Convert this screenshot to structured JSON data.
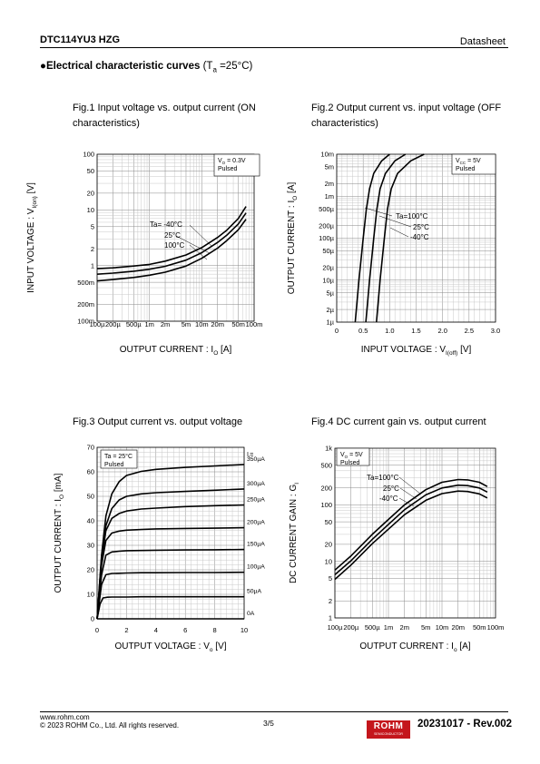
{
  "header": {
    "part_number": "DTC114YU3 HZG",
    "doc_type": "Datasheet"
  },
  "section": {
    "bullet": "●",
    "title": "Electrical characteristic curves",
    "condition": "(T",
    "condition_sub": "a",
    "condition_end": " =25°C)"
  },
  "figures": {
    "fig1": {
      "caption_line1": "Fig.1 Input voltage vs. output current (ON",
      "caption_line2": "characteristics)"
    },
    "fig2": {
      "caption_line1": "Fig.2 Output current vs. input voltage (OFF",
      "caption_line2": "characteristics)"
    },
    "fig3": {
      "caption_line1": "Fig.3 Output current vs. output voltage"
    },
    "fig4": {
      "caption_line1": "Fig.4 DC current gain vs. output current"
    }
  },
  "chart_data": [
    {
      "type": "line",
      "x_scale": "log",
      "y_scale": "log",
      "xlabel": "OUTPUT CURRENT : IO [A]",
      "ylabel": "INPUT VOLTAGE : VI(on) [V]",
      "xlabel_parts": [
        "OUTPUT CURRENT : I",
        "O",
        " [A]"
      ],
      "ylabel_parts": [
        "INPUT VOLTAGE : V",
        "I(on)",
        " [V]"
      ],
      "xlim": [
        0.0001,
        0.1
      ],
      "ylim": [
        0.1,
        100
      ],
      "x_ticks": [
        "100µ",
        "200µ",
        "500µ",
        "1m",
        "2m",
        "5m",
        "10m",
        "20m",
        "50m",
        "100m"
      ],
      "x_tick_values": [
        0.0001,
        0.0002,
        0.0005,
        0.001,
        0.002,
        0.005,
        0.01,
        0.02,
        0.05,
        0.1
      ],
      "y_ticks": [
        "100m",
        "200m",
        "500m",
        "1",
        "2",
        "5",
        "10",
        "20",
        "50",
        "100"
      ],
      "y_tick_values": [
        0.1,
        0.2,
        0.5,
        1,
        2,
        5,
        10,
        20,
        50,
        100
      ],
      "conditions": [
        "VO = 0.3V",
        "Pulsed"
      ],
      "conditions_parts": [
        [
          "V",
          "O",
          " = 0.3V"
        ],
        [
          "Pulsed",
          "",
          ""
        ]
      ],
      "series_labels": [
        "Ta= -40°C",
        "25°C",
        "100°C"
      ],
      "series": [
        {
          "name": "Ta= -40°C",
          "x": [
            0.0001,
            0.0002,
            0.0005,
            0.001,
            0.002,
            0.005,
            0.01,
            0.02,
            0.03,
            0.05,
            0.07
          ],
          "y": [
            0.88,
            0.91,
            0.98,
            1.05,
            1.2,
            1.55,
            2.1,
            3.2,
            4.3,
            7.0,
            11.5
          ]
        },
        {
          "name": "25°C",
          "x": [
            0.0001,
            0.0002,
            0.0005,
            0.001,
            0.002,
            0.005,
            0.01,
            0.02,
            0.03,
            0.05,
            0.07
          ],
          "y": [
            0.7,
            0.73,
            0.79,
            0.86,
            0.97,
            1.25,
            1.7,
            2.6,
            3.5,
            5.6,
            8.8
          ]
        },
        {
          "name": "100°C",
          "x": [
            0.0001,
            0.0002,
            0.0005,
            0.001,
            0.002,
            0.005,
            0.01,
            0.02,
            0.03,
            0.05,
            0.07
          ],
          "y": [
            0.53,
            0.56,
            0.61,
            0.67,
            0.76,
            0.98,
            1.35,
            2.05,
            2.8,
            4.4,
            6.8
          ]
        }
      ]
    },
    {
      "type": "line",
      "x_scale": "linear",
      "y_scale": "log",
      "xlabel": "INPUT VOLTAGE : VI(off) [V]",
      "ylabel": "OUTPUT CURRENT : IO [A]",
      "xlabel_parts": [
        "INPUT VOLTAGE : V",
        "I(off)",
        " [V]"
      ],
      "ylabel_parts": [
        "OUTPUT CURRENT : I",
        "O",
        " [A]"
      ],
      "xlim": [
        0,
        3.0
      ],
      "ylim": [
        1e-06,
        0.01
      ],
      "x_ticks": [
        "0",
        "0.5",
        "1.0",
        "1.5",
        "2.0",
        "2.5",
        "3.0"
      ],
      "x_tick_values": [
        0,
        0.5,
        1.0,
        1.5,
        2.0,
        2.5,
        3.0
      ],
      "y_ticks": [
        "1µ",
        "2µ",
        "5µ",
        "10µ",
        "20µ",
        "50µ",
        "100µ",
        "200µ",
        "500µ",
        "1m",
        "2m",
        "5m",
        "10m"
      ],
      "y_tick_values": [
        1e-06,
        2e-06,
        5e-06,
        1e-05,
        2e-05,
        5e-05,
        0.0001,
        0.0002,
        0.0005,
        0.001,
        0.002,
        0.005,
        0.01
      ],
      "conditions": [
        "VCC = 5V",
        "Pulsed"
      ],
      "conditions_parts": [
        [
          "V",
          "CC",
          " = 5V"
        ],
        [
          "Pulsed",
          "",
          ""
        ]
      ],
      "series_labels": [
        "Ta=100°C",
        "25°C",
        "-40°C"
      ],
      "series": [
        {
          "name": "Ta=100°C",
          "x": [
            0.35,
            0.42,
            0.5,
            0.56,
            0.62,
            0.7,
            0.85,
            1.0
          ],
          "y": [
            1e-06,
            1e-05,
            0.0001,
            0.0005,
            0.0015,
            0.0035,
            0.007,
            0.01
          ]
        },
        {
          "name": "25°C",
          "x": [
            0.55,
            0.62,
            0.7,
            0.76,
            0.82,
            0.92,
            1.1,
            1.3
          ],
          "y": [
            1e-06,
            1e-05,
            0.0001,
            0.0005,
            0.0015,
            0.0035,
            0.007,
            0.01
          ]
        },
        {
          "name": "-40°C",
          "x": [
            0.75,
            0.82,
            0.9,
            0.96,
            1.03,
            1.15,
            1.4,
            1.65
          ],
          "y": [
            1e-06,
            1e-05,
            0.0001,
            0.0005,
            0.0015,
            0.0035,
            0.007,
            0.01
          ]
        }
      ]
    },
    {
      "type": "line",
      "x_scale": "linear",
      "y_scale": "linear",
      "xlabel": "OUTPUT VOLTAGE : Vo [V]",
      "ylabel": "OUTPUT CURRENT : IO [mA]",
      "xlabel_parts": [
        "OUTPUT VOLTAGE : V",
        "o",
        " [V]"
      ],
      "ylabel_parts": [
        "OUTPUT CURRENT : I",
        "O",
        " [mA]"
      ],
      "xlim": [
        0,
        10
      ],
      "ylim": [
        0,
        70
      ],
      "x_ticks": [
        "0",
        "2",
        "4",
        "6",
        "8",
        "10"
      ],
      "x_tick_values": [
        0,
        2,
        4,
        6,
        8,
        10
      ],
      "y_ticks": [
        "0",
        "10",
        "20",
        "30",
        "40",
        "50",
        "60",
        "70"
      ],
      "y_tick_values": [
        0,
        10,
        20,
        30,
        40,
        50,
        60,
        70
      ],
      "conditions": [
        "Ta = 25°C",
        "Pulsed"
      ],
      "conditions_parts": [
        [
          "Ta = 25°C",
          "",
          ""
        ],
        [
          "Pulsed",
          "",
          ""
        ]
      ],
      "legend_title": "II=",
      "legend_title_parts": [
        "I",
        "I",
        "="
      ],
      "series": [
        {
          "name": "350µA",
          "x": [
            0,
            0.3,
            0.6,
            1,
            1.5,
            2,
            3,
            4,
            6,
            8,
            10
          ],
          "y": [
            0,
            26,
            42,
            51,
            56,
            58.5,
            60.2,
            61,
            61.8,
            62.4,
            63
          ]
        },
        {
          "name": "300µA",
          "x": [
            0,
            0.3,
            0.6,
            1,
            1.5,
            2,
            3,
            4,
            6,
            8,
            10
          ],
          "y": [
            0,
            25,
            38,
            45,
            48.5,
            50,
            51,
            51.5,
            52,
            52.5,
            53
          ]
        },
        {
          "name": "250µA",
          "x": [
            0,
            0.3,
            0.6,
            1,
            1.5,
            2,
            3,
            4,
            6,
            8,
            10
          ],
          "y": [
            0,
            24,
            36,
            41,
            43,
            44,
            44.8,
            45.2,
            45.8,
            46.2,
            46.5
          ]
        },
        {
          "name": "200µA",
          "x": [
            0,
            0.3,
            0.6,
            1,
            1.5,
            2,
            3,
            4,
            6,
            8,
            10
          ],
          "y": [
            0,
            22,
            32,
            35,
            35.8,
            36.2,
            36.5,
            36.7,
            36.9,
            37,
            37.2
          ]
        },
        {
          "name": "150µA",
          "x": [
            0,
            0.3,
            0.6,
            1,
            1.5,
            2,
            3,
            4,
            6,
            8,
            10
          ],
          "y": [
            0,
            18,
            26,
            27.3,
            27.6,
            27.8,
            27.9,
            28,
            28.1,
            28.2,
            28.3
          ]
        },
        {
          "name": "100µA",
          "x": [
            0,
            0.3,
            0.6,
            1,
            1.5,
            2,
            3,
            4,
            6,
            8,
            10
          ],
          "y": [
            0,
            14,
            18,
            18.5,
            18.6,
            18.7,
            18.8,
            18.8,
            18.9,
            18.9,
            19
          ]
        },
        {
          "name": "50µA",
          "x": [
            0,
            0.2,
            0.4,
            0.7,
            1,
            2,
            3,
            4,
            6,
            8,
            10
          ],
          "y": [
            0,
            6,
            8.5,
            8.8,
            8.9,
            8.9,
            9,
            9,
            9,
            9,
            9
          ]
        },
        {
          "name": "0A",
          "x": [
            0,
            10
          ],
          "y": [
            0,
            0
          ]
        }
      ]
    },
    {
      "type": "line",
      "x_scale": "log",
      "y_scale": "log",
      "xlabel": "OUTPUT CURRENT : Io [A]",
      "ylabel": "DC CURRENT GAIN : GI",
      "xlabel_parts": [
        "OUTPUT CURRENT : I",
        "o",
        " [A]"
      ],
      "ylabel_parts": [
        "DC CURRENT GAIN : G",
        "I",
        ""
      ],
      "xlim": [
        0.0001,
        0.1
      ],
      "ylim": [
        1,
        1000
      ],
      "x_ticks": [
        "100µ",
        "200µ",
        "500µ",
        "1m",
        "2m",
        "5m",
        "10m",
        "20m",
        "50m",
        "100m"
      ],
      "x_tick_values": [
        0.0001,
        0.0002,
        0.0005,
        0.001,
        0.002,
        0.005,
        0.01,
        0.02,
        0.05,
        0.1
      ],
      "y_ticks": [
        "1",
        "2",
        "5",
        "10",
        "20",
        "50",
        "100",
        "200",
        "500",
        "1k"
      ],
      "y_tick_values": [
        1,
        2,
        5,
        10,
        20,
        50,
        100,
        200,
        500,
        1000
      ],
      "conditions": [
        "VO = 5V",
        "Pulsed"
      ],
      "conditions_parts": [
        [
          "V",
          "O",
          " = 5V"
        ],
        [
          "Pulsed",
          "",
          ""
        ]
      ],
      "series_labels": [
        "Ta=100°C",
        "25°C",
        "-40°C"
      ],
      "series": [
        {
          "name": "Ta=100°C",
          "x": [
            0.0001,
            0.0002,
            0.0005,
            0.001,
            0.002,
            0.005,
            0.01,
            0.02,
            0.03,
            0.05,
            0.07
          ],
          "y": [
            7,
            12.5,
            30,
            55,
            100,
            185,
            250,
            280,
            275,
            250,
            210
          ]
        },
        {
          "name": "25°C",
          "x": [
            0.0001,
            0.0002,
            0.0005,
            0.001,
            0.002,
            0.005,
            0.01,
            0.02,
            0.03,
            0.05,
            0.07
          ],
          "y": [
            5.8,
            10.3,
            24.5,
            45,
            82,
            150,
            198,
            222,
            218,
            198,
            168
          ]
        },
        {
          "name": "-40°C",
          "x": [
            0.0001,
            0.0002,
            0.0005,
            0.001,
            0.002,
            0.005,
            0.01,
            0.02,
            0.03,
            0.05,
            0.07
          ],
          "y": [
            4.8,
            8.6,
            20.5,
            37,
            67,
            120,
            158,
            175,
            172,
            156,
            132
          ]
        }
      ]
    }
  ],
  "footer": {
    "website": "www.rohm.com",
    "copyright": "© 2023 ROHM Co., Ltd. All rights reserved.",
    "page": "3/5",
    "logo_text": "ROHM",
    "logo_subtext": "SEMICONDUCTOR",
    "revision": "20231017 - Rev.002"
  }
}
